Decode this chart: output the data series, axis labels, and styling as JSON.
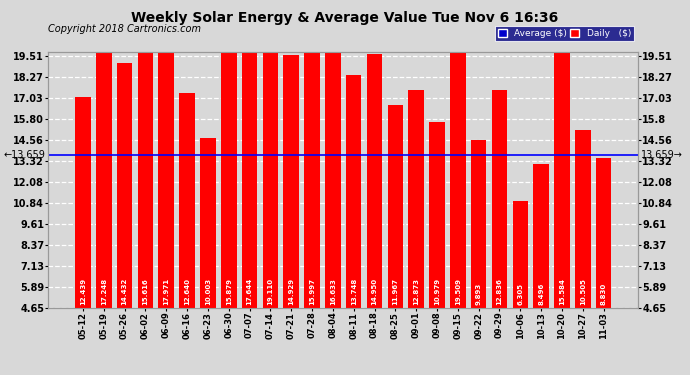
{
  "title": "Weekly Solar Energy & Average Value Tue Nov 6 16:36",
  "copyright": "Copyright 2018 Cartronics.com",
  "categories": [
    "05-12",
    "05-19",
    "05-26",
    "06-02",
    "06-09",
    "06-16",
    "06-23",
    "06-30",
    "07-07",
    "07-14",
    "07-21",
    "07-28",
    "08-04",
    "08-11",
    "08-18",
    "08-25",
    "09-01",
    "09-08",
    "09-15",
    "09-22",
    "09-29",
    "10-06",
    "10-13",
    "10-20",
    "10-27",
    "11-03"
  ],
  "values": [
    12.439,
    17.248,
    14.432,
    15.616,
    17.971,
    12.64,
    10.003,
    15.879,
    17.644,
    19.11,
    14.929,
    15.997,
    16.633,
    13.748,
    14.95,
    11.967,
    12.873,
    10.979,
    19.509,
    9.893,
    12.836,
    6.305,
    8.496,
    15.584,
    10.505,
    8.83
  ],
  "average": 13.659,
  "bar_color": "#FF0000",
  "average_line_color": "#0000FF",
  "yticks": [
    4.65,
    5.89,
    7.13,
    8.37,
    9.61,
    10.84,
    12.08,
    13.32,
    14.56,
    15.8,
    17.03,
    18.27,
    19.51
  ],
  "background_color": "#D8D8D8",
  "plot_bg_color": "#D8D8D8",
  "grid_color": "#FFFFFF",
  "ymin": 4.65,
  "ymax": 19.51,
  "title_fontsize": 10,
  "tick_fontsize": 7,
  "bar_label_fontsize": 5,
  "copyright_fontsize": 7
}
